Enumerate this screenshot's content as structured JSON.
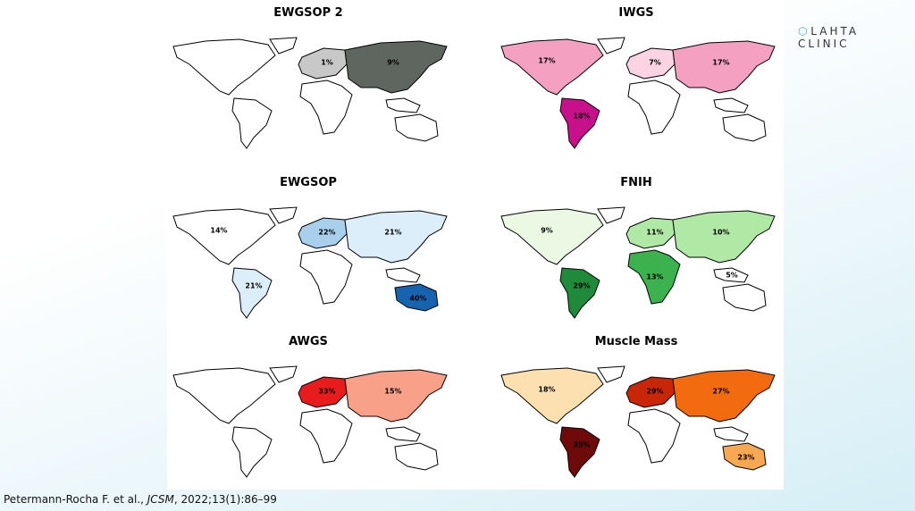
{
  "logo": "LAHTA CLINIC",
  "maps": [
    {
      "title": "EWGSOP 2",
      "labels": [
        {
          "text": "1%",
          "fill": "#c8c8c8"
        },
        {
          "text": "9%",
          "fill": "#5f665f"
        }
      ]
    },
    {
      "title": "IWGS",
      "labels": [
        {
          "text": "17%",
          "fill": "#f4a0c0"
        },
        {
          "text": "7%",
          "fill": "#fbd3e3"
        },
        {
          "text": "17%",
          "fill": "#f4a0c0"
        },
        {
          "text": "18%",
          "fill": "#c8108a"
        }
      ]
    },
    {
      "title": "EWGSOP",
      "labels": [
        {
          "text": "14%",
          "fill": "#ffffff"
        },
        {
          "text": "22%",
          "fill": "#a8d0ec"
        },
        {
          "text": "21%",
          "fill": "#ddeefb"
        },
        {
          "text": "21%",
          "fill": "#ddeefb"
        },
        {
          "text": "40%",
          "fill": "#1664b0"
        }
      ]
    },
    {
      "title": "FNIH",
      "labels": [
        {
          "text": "9%",
          "fill": "#eaf8e4"
        },
        {
          "text": "11%",
          "fill": "#b0e8a5"
        },
        {
          "text": "10%",
          "fill": "#b0e8a5"
        },
        {
          "text": "29%",
          "fill": "#1e8a3a"
        },
        {
          "text": "13%",
          "fill": "#3cb24e"
        },
        {
          "text": "5%",
          "fill": "#ffffff"
        }
      ]
    },
    {
      "title": "AWGS",
      "labels": [
        {
          "text": "33%",
          "fill": "#e81c1c"
        },
        {
          "text": "15%",
          "fill": "#f8a088"
        }
      ]
    },
    {
      "title": "Muscle Mass",
      "labels": [
        {
          "text": "18%",
          "fill": "#fde0b0"
        },
        {
          "text": "29%",
          "fill": "#c82606"
        },
        {
          "text": "27%",
          "fill": "#f26b0e"
        },
        {
          "text": "35%",
          "fill": "#6e0a0a"
        },
        {
          "text": "23%",
          "fill": "#f8a850"
        }
      ]
    }
  ],
  "citation": {
    "authors": "Petermann-Rocha F. et al., ",
    "journal": "JCSM",
    "details": ", 2022;13(1):86–99"
  }
}
